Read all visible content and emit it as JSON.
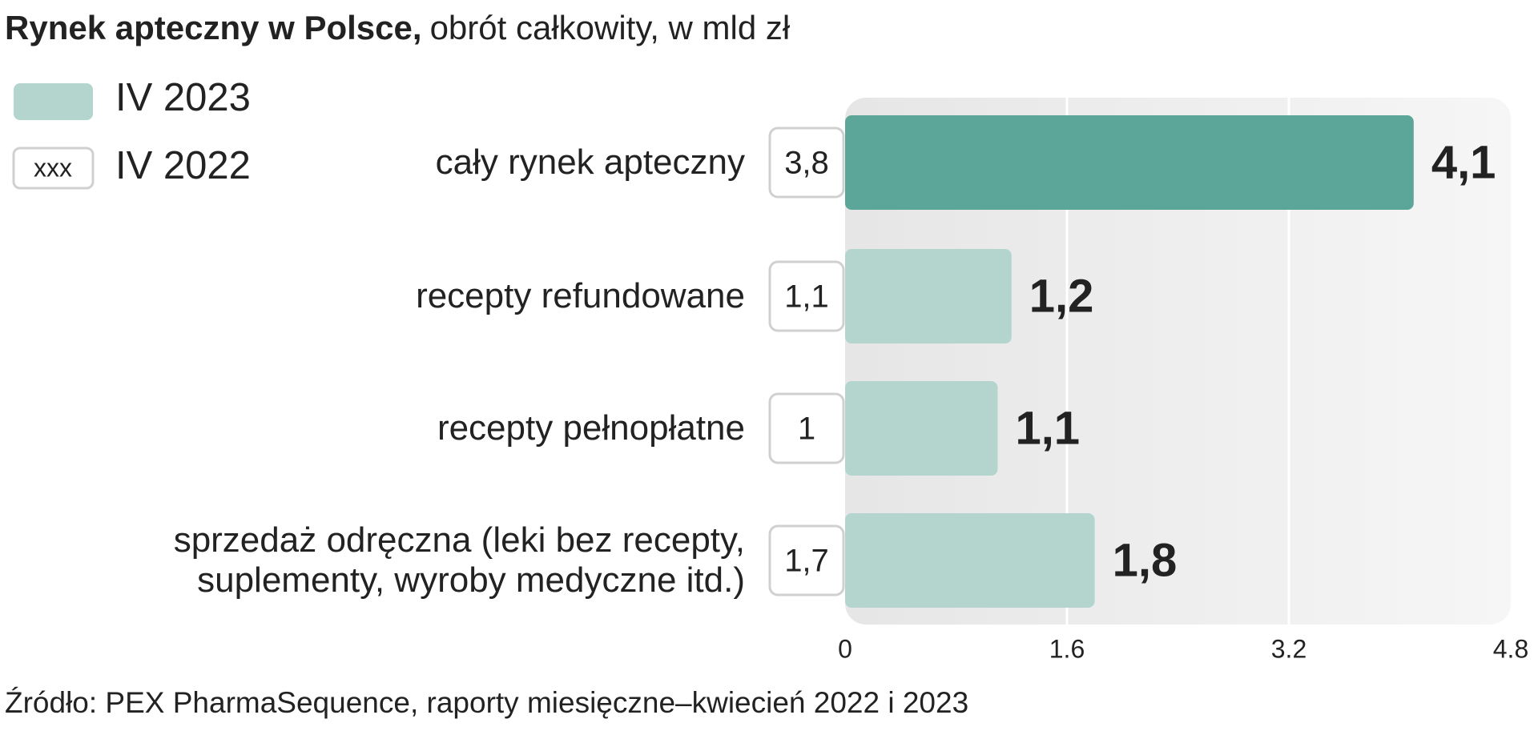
{
  "chart_data": {
    "type": "hbar",
    "title": "Rynek apteczny w Polsce,",
    "subtitle": "obrót całkowity, w mld zł",
    "source": "Źródło: PEX PharmaSequence, raporty miesięczne–kwiecień 2022 i 2023",
    "categories": [
      "cały rynek apteczny",
      "recepty refundowane",
      "recepty pełnopłatne",
      "sprzedaż odręczna (leki bez recepty,\nsuplementy, wyroby medyczne itd.)"
    ],
    "series": [
      {
        "name": "IV 2023",
        "color": "#b3d5cd",
        "colors": [
          "#5ba698",
          "#b3d5cd",
          "#b3d5cd",
          "#b3d5cd"
        ],
        "values": [
          4.1,
          1.2,
          1.1,
          1.8
        ],
        "value_labels": [
          "4,1",
          "1,2",
          "1,1",
          "1,8"
        ]
      },
      {
        "name": "IV 2022",
        "color": "#ffffff",
        "legend_sample": "xxx",
        "values": [
          3.8,
          1.1,
          1,
          1.7
        ],
        "value_labels": [
          "3,8",
          "1,1",
          "1",
          "1,7"
        ]
      }
    ],
    "xlim": [
      0,
      4.8
    ],
    "xticks": [
      0,
      1.6,
      3.2,
      4.8
    ],
    "grid": true
  }
}
